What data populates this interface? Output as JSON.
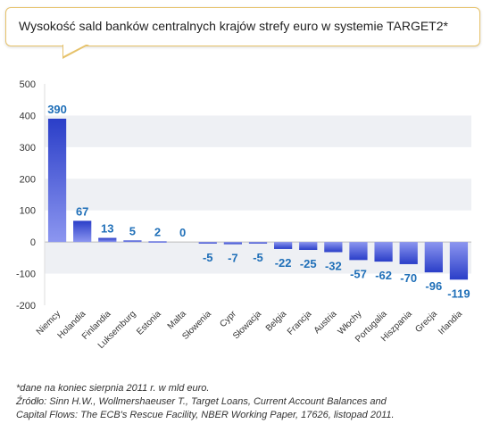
{
  "title": "Wysokość sald banków centralnych krajów strefy euro w systemie TARGET2*",
  "footnote": {
    "line1": "*dane na koniec sierpnia 2011 r. w mld euro.",
    "line2": "Źródło: Sinn H.W., Wollmershaeuser T., Target Loans, Current Account Balances and",
    "line3": "Capital Flows: The ECB's Rescue Facility, NBER Working Paper, 17626, listopad 2011."
  },
  "chart_data": {
    "type": "bar",
    "categories": [
      "Niemcy",
      "Holandia",
      "Finlandia",
      "Luksemburg",
      "Estonia",
      "Malta",
      "Słowenia",
      "Cypr",
      "Słowacja",
      "Belgia",
      "Francja",
      "Austria",
      "Włochy",
      "Portugalia",
      "Hiszpania",
      "Grecja",
      "Irlandia"
    ],
    "values": [
      390,
      67,
      13,
      5,
      2,
      0,
      -5,
      -7,
      -5,
      -22,
      -25,
      -32,
      -57,
      -62,
      -70,
      -96,
      -119
    ],
    "data_labels": [
      "390",
      "67",
      "13",
      "5",
      "2",
      "0",
      "-5",
      "-7",
      "-5",
      "-22",
      "-25",
      "-32",
      "-57",
      "-62",
      "-70",
      "-96",
      "-119"
    ],
    "yticks": [
      "500",
      "400",
      "300",
      "200",
      "100",
      "0",
      "-100",
      "-200"
    ],
    "ylim": [
      -200,
      500
    ],
    "xlabel": "",
    "ylabel": "",
    "grid": true,
    "colors": {
      "bar_top": "#2a3ec8",
      "bar_bottom": "#8c96f0",
      "label": "#1f6fb8",
      "band": "#eef0f4",
      "axis_text": "#333333"
    }
  }
}
